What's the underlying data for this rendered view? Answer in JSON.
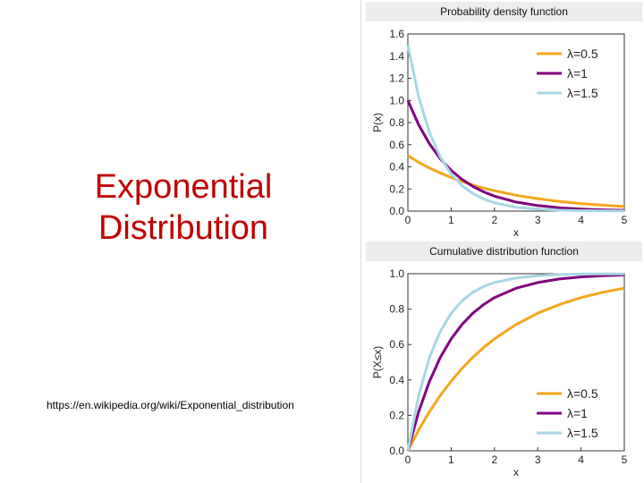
{
  "slide": {
    "title_line1": "Exponential",
    "title_line2": "Distribution",
    "source_url": "https://en.wikipedia.org/wiki/Exponential_distribution",
    "title_color": "#c00000"
  },
  "chart_data": [
    {
      "type": "line",
      "title": "Probability density function",
      "xlabel": "x",
      "ylabel": "P(x)",
      "xlim": [
        0,
        5
      ],
      "ylim": [
        0,
        1.6
      ],
      "xticks": [
        "0",
        "1",
        "2",
        "3",
        "4",
        "5"
      ],
      "yticks": [
        "0.0",
        "0.2",
        "0.4",
        "0.6",
        "0.8",
        "1.0",
        "1.2",
        "1.4",
        "1.6"
      ],
      "grid": false,
      "legend_position": "top-right",
      "x": [
        0,
        0.25,
        0.5,
        0.75,
        1,
        1.25,
        1.5,
        1.75,
        2,
        2.5,
        3,
        3.5,
        4,
        4.5,
        5
      ],
      "series": [
        {
          "name": "λ=0.5",
          "color": "#f2a71b",
          "values": [
            0.5,
            0.441,
            0.389,
            0.344,
            0.303,
            0.268,
            0.236,
            0.208,
            0.184,
            0.143,
            0.112,
            0.087,
            0.068,
            0.053,
            0.041
          ]
        },
        {
          "name": "λ=1",
          "color": "#800080",
          "values": [
            1.0,
            0.779,
            0.607,
            0.472,
            0.368,
            0.287,
            0.223,
            0.174,
            0.135,
            0.082,
            0.05,
            0.03,
            0.018,
            0.011,
            0.007
          ]
        },
        {
          "name": "λ=1.5",
          "color": "#a6d7e3",
          "values": [
            1.5,
            1.031,
            0.709,
            0.487,
            0.335,
            0.23,
            0.158,
            0.109,
            0.075,
            0.035,
            0.017,
            0.008,
            0.004,
            0.002,
            0.001
          ]
        }
      ]
    },
    {
      "type": "line",
      "title": "Cumulative distribution function",
      "xlabel": "x",
      "ylabel": "P(X≤x)",
      "xlim": [
        0,
        5
      ],
      "ylim": [
        0,
        1.0
      ],
      "xticks": [
        "0",
        "1",
        "2",
        "3",
        "4",
        "5"
      ],
      "yticks": [
        "0.0",
        "0.2",
        "0.4",
        "0.6",
        "0.8",
        "1.0"
      ],
      "grid": false,
      "legend_position": "bottom-right",
      "x": [
        0,
        0.25,
        0.5,
        0.75,
        1,
        1.25,
        1.5,
        1.75,
        2,
        2.5,
        3,
        3.5,
        4,
        4.5,
        5
      ],
      "series": [
        {
          "name": "λ=0.5",
          "color": "#f2a71b",
          "values": [
            0,
            0.118,
            0.221,
            0.313,
            0.393,
            0.465,
            0.528,
            0.583,
            0.632,
            0.713,
            0.777,
            0.826,
            0.865,
            0.895,
            0.918
          ]
        },
        {
          "name": "λ=1",
          "color": "#800080",
          "values": [
            0,
            0.221,
            0.393,
            0.528,
            0.632,
            0.713,
            0.777,
            0.826,
            0.865,
            0.918,
            0.95,
            0.97,
            0.982,
            0.989,
            0.993
          ]
        },
        {
          "name": "λ=1.5",
          "color": "#a6d7e3",
          "values": [
            0,
            0.313,
            0.528,
            0.675,
            0.777,
            0.847,
            0.895,
            0.928,
            0.95,
            0.976,
            0.989,
            0.995,
            0.998,
            0.999,
            0.999
          ]
        }
      ]
    }
  ]
}
